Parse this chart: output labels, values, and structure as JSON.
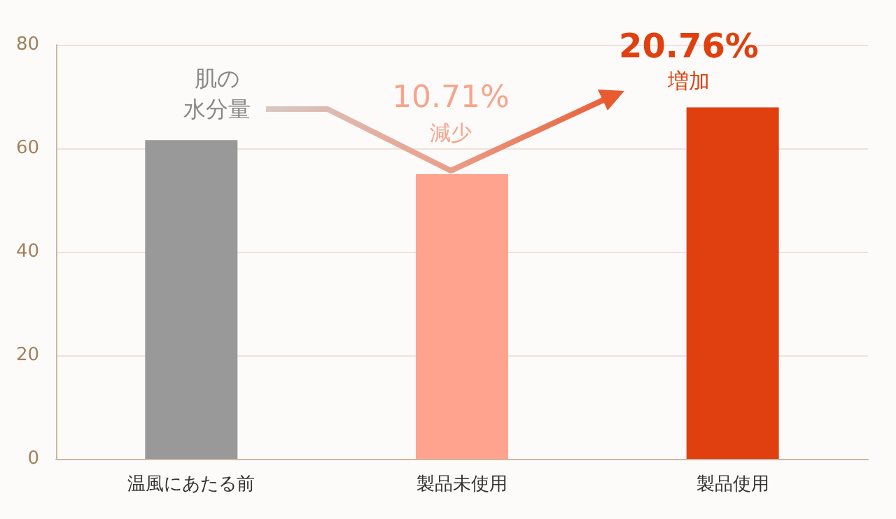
{
  "chart_data": {
    "type": "bar",
    "categories": [
      "温風にあたる前",
      "製品未使用",
      "製品使用"
    ],
    "values": [
      61.6,
      55.0,
      67.9
    ],
    "colors": [
      "#999999",
      "#ffa38f",
      "#e04010"
    ],
    "ylim": [
      0,
      80
    ],
    "yticks": [
      0,
      20,
      40,
      60,
      80
    ],
    "grid": "y",
    "annotations": [
      "肌の",
      "水分量",
      "10.71%",
      "減少",
      "20.76%",
      "増加"
    ]
  }
}
